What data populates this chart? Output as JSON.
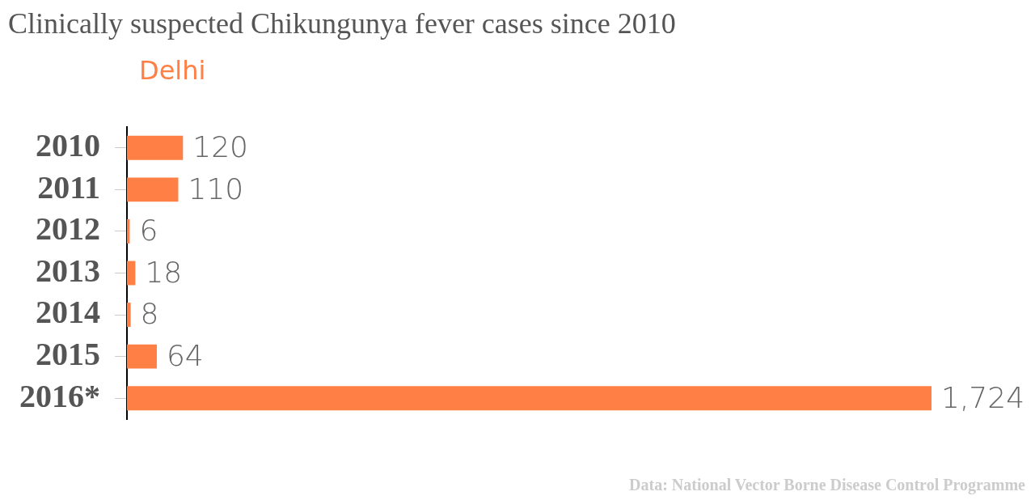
{
  "chart_data": {
    "type": "bar",
    "orientation": "horizontal",
    "title": "Clinically suspected Chikungunya fever cases since 2010",
    "categories": [
      "2010",
      "2011",
      "2012",
      "2013",
      "2014",
      "2015",
      "2016*"
    ],
    "series": [
      {
        "name": "Delhi",
        "color": "#ff7f45",
        "values": [
          120,
          110,
          6,
          18,
          8,
          64,
          1724
        ],
        "value_labels": [
          "120",
          "110",
          "6",
          "18",
          "8",
          "64",
          "1,724"
        ]
      }
    ],
    "legend": "top left",
    "annotations": [
      "Data: National Vector Borne Disease Control Programme"
    ]
  }
}
